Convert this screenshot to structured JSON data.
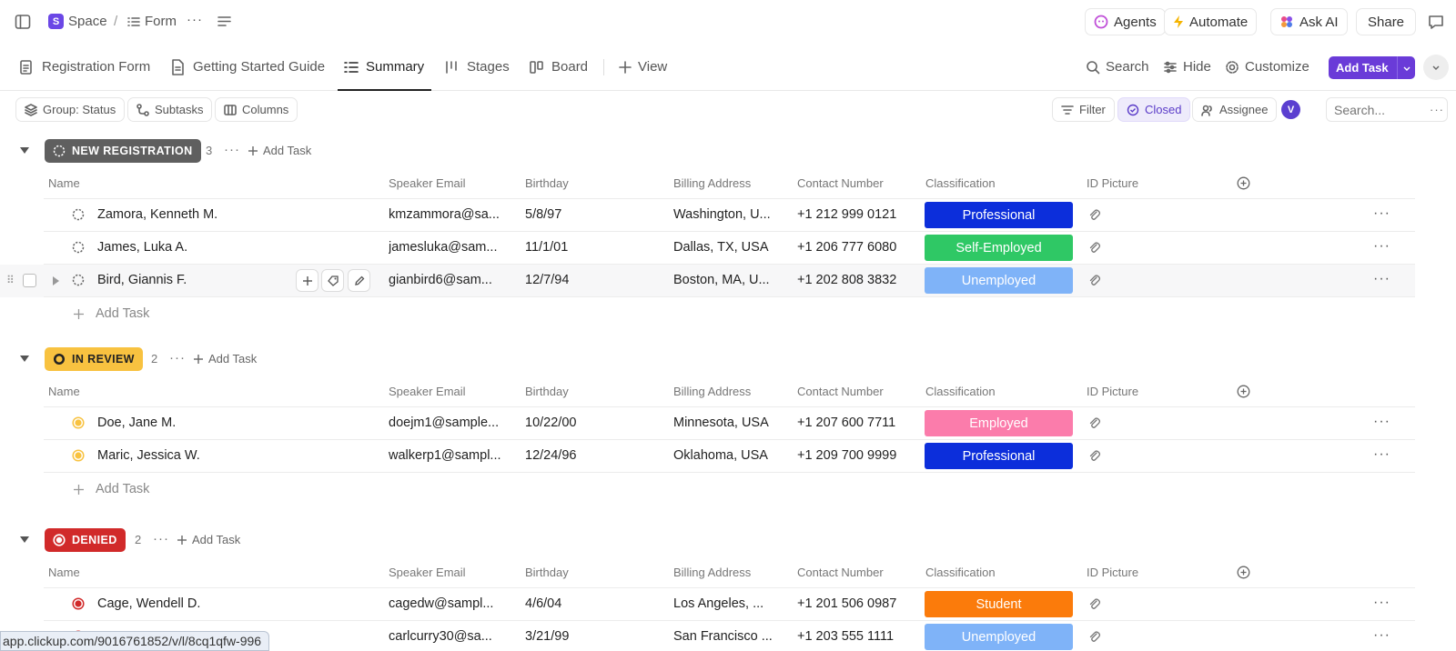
{
  "breadcrumb": {
    "space_letter": "S",
    "space": "Space",
    "separator": "/",
    "form": "Form",
    "more": "···"
  },
  "topbar": {
    "agents": "Agents",
    "automate": "Automate",
    "ask_ai": "Ask AI",
    "share": "Share"
  },
  "views": {
    "tabs": [
      {
        "label": "Registration Form"
      },
      {
        "label": "Getting Started Guide"
      },
      {
        "label": "Summary"
      },
      {
        "label": "Stages"
      },
      {
        "label": "Board"
      }
    ],
    "add_view": "View",
    "search": "Search",
    "hide": "Hide",
    "customize": "Customize",
    "add_task": "Add Task"
  },
  "filters": {
    "group": "Group: Status",
    "subtasks": "Subtasks",
    "columns": "Columns",
    "filter": "Filter",
    "closed": "Closed",
    "assignee": "Assignee",
    "avatar": "V",
    "search_placeholder": "Search..."
  },
  "columns": [
    "Name",
    "Speaker Email",
    "Birthday",
    "Billing Address",
    "Contact Number",
    "Classification",
    "ID Picture"
  ],
  "add_task_label": "Add Task",
  "groups": [
    {
      "status": "NEW REGISTRATION",
      "color": "#5f5f5f",
      "count": "3",
      "rows": [
        {
          "name": "Zamora, Kenneth M.",
          "email": "kmzammora@sa...",
          "birthday": "5/8/97",
          "address": "Washington, U...",
          "phone": "+1 212 999 0121",
          "classification": "Professional",
          "class_color": "#0c2edb"
        },
        {
          "name": "James, Luka A.",
          "email": "jamesluka@sam...",
          "birthday": "11/1/01",
          "address": "Dallas, TX, USA",
          "phone": "+1 206 777 6080",
          "classification": "Self-Employed",
          "class_color": "#2fc865"
        },
        {
          "name": "Bird, Giannis F.",
          "email": "gianbird6@sam...",
          "birthday": "12/7/94",
          "address": "Boston, MA, U...",
          "phone": "+1 202 808 3832",
          "classification": "Unemployed",
          "class_color": "#7fb3f8"
        }
      ]
    },
    {
      "status": "IN REVIEW",
      "color": "#f8c240",
      "count": "2",
      "rows": [
        {
          "name": "Doe, Jane M.",
          "email": "doejm1@sample...",
          "birthday": "10/22/00",
          "address": "Minnesota, USA",
          "phone": "+1 207 600 7711",
          "classification": "Employed",
          "class_color": "#fb7cab"
        },
        {
          "name": "Maric, Jessica W.",
          "email": "walkerp1@sampl...",
          "birthday": "12/24/96",
          "address": "Oklahoma, USA",
          "phone": "+1 209 700 9999",
          "classification": "Professional",
          "class_color": "#0c2edb"
        }
      ]
    },
    {
      "status": "DENIED",
      "color": "#d12a2a",
      "count": "2",
      "rows": [
        {
          "name": "Cage, Wendell D.",
          "email": "cagedw@sampl...",
          "birthday": "4/6/04",
          "address": "Los Angeles, ...",
          "phone": "+1 201 506 0987",
          "classification": "Student",
          "class_color": "#fb7b0b"
        },
        {
          "name": "",
          "email": "carlcurry30@sa...",
          "birthday": "3/21/99",
          "address": "San Francisco ...",
          "phone": "+1 203 555 1111",
          "classification": "Unemployed",
          "class_color": "#7fb3f8"
        }
      ]
    }
  ],
  "status_url": "app.clickup.com/9016761852/v/l/8cq1qfw-996"
}
